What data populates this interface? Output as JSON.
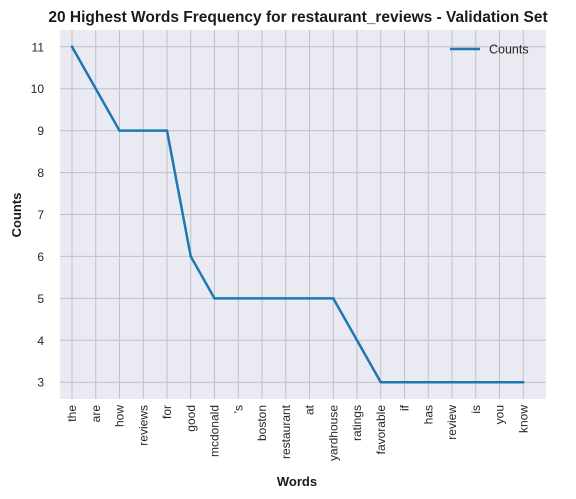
{
  "chart_data": {
    "type": "line",
    "title": "20 Highest Words Frequency for restaurant_reviews - Validation Set",
    "xlabel": "Words",
    "ylabel": "Counts",
    "categories": [
      "the",
      "are",
      "how",
      "reviews",
      "for",
      "good",
      "mcdonald",
      "'s",
      "boston",
      "restaurant",
      "at",
      "yardhouse",
      "ratings",
      "favorable",
      "if",
      "has",
      "review",
      "is",
      "you",
      "know"
    ],
    "series": [
      {
        "name": "Counts",
        "values": [
          11,
          10,
          9,
          9,
          9,
          6,
          5,
          5,
          5,
          5,
          5,
          5,
          4,
          3,
          3,
          3,
          3,
          3,
          3,
          3
        ],
        "color": "#1f77b4"
      }
    ],
    "yticks": [
      3,
      4,
      5,
      6,
      7,
      8,
      9,
      10,
      11
    ],
    "ylim": [
      2.6,
      11.4
    ],
    "grid": true,
    "legend_position": "top-right",
    "plot_background": "#eaeaf2",
    "grid_color": "#c0c0c8"
  }
}
